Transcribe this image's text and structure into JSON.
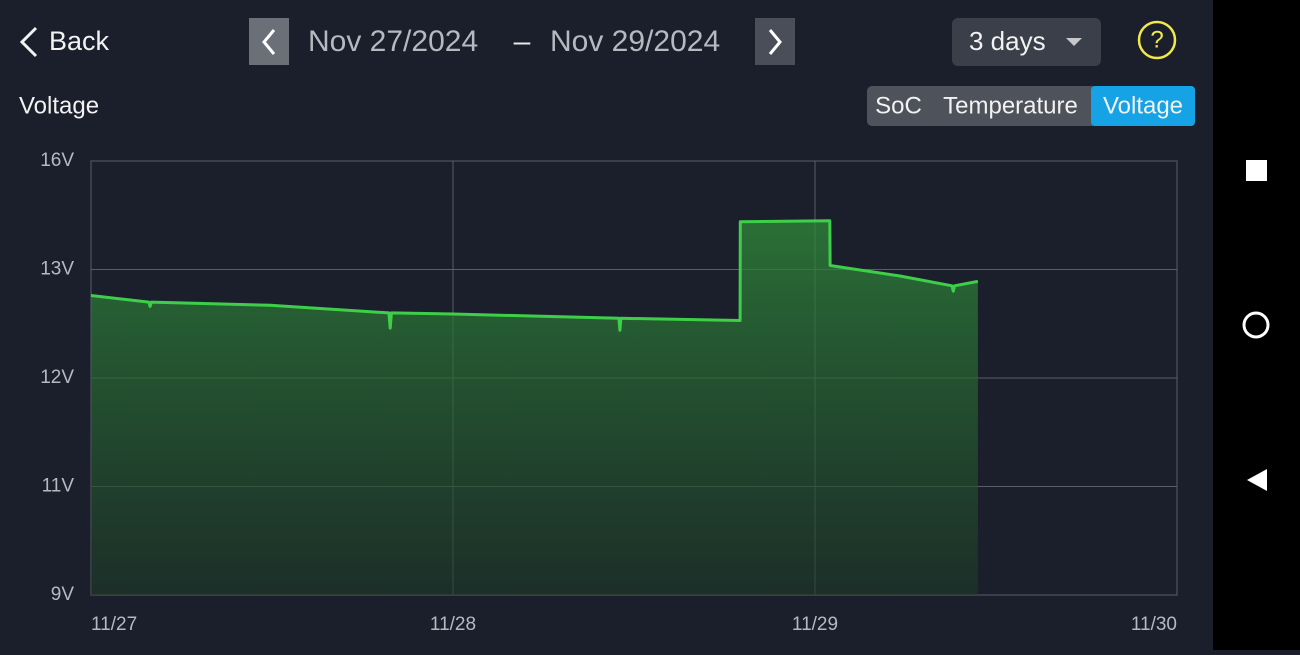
{
  "header": {
    "back": "Back",
    "date_from": "Nov 27/2024",
    "separator": "–",
    "date_to": "Nov 29/2024",
    "range": "3 days",
    "help": "?"
  },
  "section_title": "Voltage",
  "tabs": [
    "SoC",
    "Temperature",
    "Voltage"
  ],
  "selected_tab": 2,
  "chart_data": {
    "type": "area",
    "series": [
      {
        "name": "Voltage",
        "color": "#3ecf4a",
        "x": [
          "2024-11-27T00:00",
          "2024-11-27T03:50",
          "2024-11-27T03:55",
          "2024-11-27T04:00",
          "2024-11-27T11:52",
          "2024-11-27T19:45",
          "2024-11-27T19:50",
          "2024-11-27T19:55",
          "2024-11-28T00:00",
          "2024-11-28T11:00",
          "2024-11-28T11:04",
          "2024-11-28T11:08",
          "2024-11-28T19:02",
          "2024-11-28T19:03",
          "2024-11-29T00:59",
          "2024-11-29T01:00",
          "2024-11-29T05:38",
          "2024-11-29T09:05",
          "2024-11-29T09:10",
          "2024-11-29T09:15",
          "2024-11-29T10:48"
        ],
        "values": [
          12.76,
          12.7,
          12.66,
          12.7,
          12.67,
          12.6,
          12.46,
          12.6,
          12.59,
          12.55,
          12.44,
          12.55,
          12.53,
          14.32,
          14.35,
          13.11,
          12.94,
          12.85,
          12.8,
          12.85,
          12.89
        ]
      }
    ],
    "xlim": [
      "2024-11-27T00:00",
      "2024-11-30T00:00"
    ],
    "xticks": [
      {
        "value": "2024-11-27T00:00",
        "label": "11/27"
      },
      {
        "value": "2024-11-28T00:00",
        "label": "11/28"
      },
      {
        "value": "2024-11-29T00:00",
        "label": "11/29"
      },
      {
        "value": "2024-11-30T00:00",
        "label": "11/30"
      }
    ],
    "ylim": [
      9,
      16
    ],
    "yticks": [
      {
        "value": 9,
        "label": "9V"
      },
      {
        "value": 11,
        "label": "11V"
      },
      {
        "value": 12,
        "label": "12V"
      },
      {
        "value": 13,
        "label": "13V"
      },
      {
        "value": 16,
        "label": "16V"
      }
    ],
    "grid": true
  }
}
